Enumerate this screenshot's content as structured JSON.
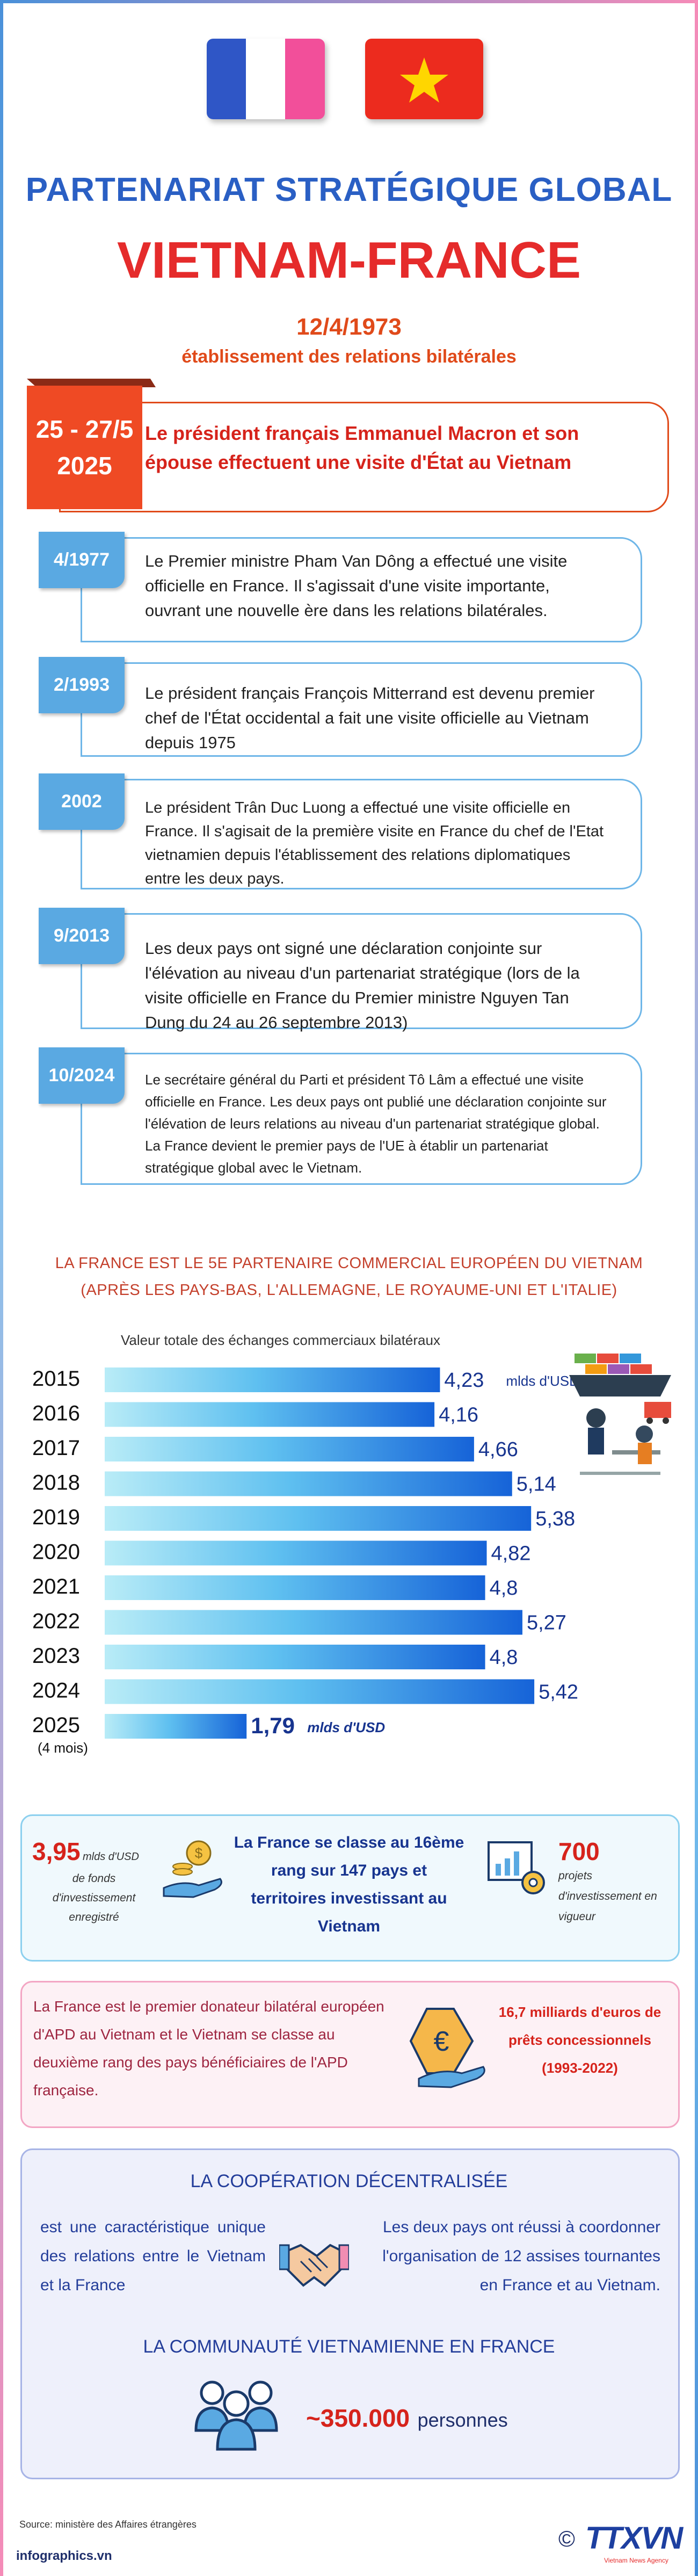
{
  "header": {
    "subtitle": "PARTENARIAT STRATÉGIQUE GLOBAL",
    "title": "VIETNAM-FRANCE",
    "date": "12/4/1973",
    "date_caption": "établissement des relations bilatérales"
  },
  "highlight": {
    "date_line1": "25 - 27/5",
    "date_line2": "2025",
    "text": "Le président français Emmanuel Macron et son épouse effectuent une visite d'État au Vietnam"
  },
  "timeline": [
    {
      "date": "4/1977",
      "text": "Le Premier ministre Pham Van Dông a effectué une visite officielle en France. Il s'agissait d'une visite importante, ouvrant une nouvelle ère dans les relations bilatérales."
    },
    {
      "date": "2/1993",
      "text": "Le président français François Mitterrand est devenu premier chef de l'État occidental a fait une visite officielle au Vietnam depuis 1975"
    },
    {
      "date": "2002",
      "text": "Le président Trân Duc Luong a effectué une visite officielle en France. Il s'agisait de la première visite en France du chef de l'Etat vietnamien depuis l'établissement des relations diplomatiques entre les deux pays."
    },
    {
      "date": "9/2013",
      "text": "Les deux pays ont signé une déclaration conjointe sur l'élévation au niveau d'un partenariat stratégique (lors de la visite officielle en France du Premier ministre Nguyen Tan Dung du 24 au 26 septembre 2013)"
    },
    {
      "date": "10/2024",
      "text": "Le secrétaire général du Parti et président Tô Lâm a effectué une visite officielle en France. Les deux pays ont publié une déclaration conjointe sur l'élévation de leurs relations au niveau d'un partenariat stratégique global. La France devient le premier pays de l'UE à établir un partenariat stratégique global avec le Vietnam."
    }
  ],
  "trade": {
    "caption_line1": "LA FRANCE EST LE 5E PARTENAIRE COMMERCIAL EUROPÉEN DU VIETNAM",
    "caption_line2": "(APRÈS LES PAYS-BAS, L'ALLEMAGNE, LE ROYAUME-UNI ET L'ITALIE)"
  },
  "chart_data": {
    "type": "bar",
    "title": "Valeur totale des échanges commerciaux bilatéraux",
    "categories": [
      "2015",
      "2016",
      "2017",
      "2018",
      "2019",
      "2020",
      "2021",
      "2022",
      "2023",
      "2024",
      "2025"
    ],
    "category_note": "(4 mois)",
    "values": [
      4.23,
      4.16,
      4.66,
      5.14,
      5.38,
      4.82,
      4.8,
      5.27,
      4.8,
      5.42,
      1.79
    ],
    "labels": [
      "4,23",
      "4,16",
      "4,66",
      "5,14",
      "5,38",
      "4,82",
      "4,8",
      "5,27",
      "4,8",
      "5,42",
      "1,79"
    ],
    "unit": "mlds d'USD",
    "orientation": "horizontal"
  },
  "investment": {
    "capital_value": "3,95",
    "capital_unit": "mlds d'USD",
    "capital_caption": "de fonds d'investissement enregistré",
    "rank_text": "La France se classe au 16ème rang sur 147 pays et territoires investissant au Vietnam",
    "projects_value": "700",
    "projects_caption": "projets d'investissement en vigueur"
  },
  "apd": {
    "text": "La France est le premier donateur bilatéral européen d'APD au Vietnam et le Vietnam se classe au deuxième rang des pays bénéficiaires de l'APD française.",
    "loans": "16,7 milliards d'euros de prêts concessionnels (1993-2022)"
  },
  "decentral": {
    "title": "LA COOPÉRATION DÉCENTRALISÉE",
    "left_text": "est une caractéristique unique des relations entre le Vietnam et la France",
    "right_text": "Les deux pays ont réussi à coordonner l'organisation de 12 assises tournantes en France et au Vietnam.",
    "community_title": "LA COMMUNAUTÉ VIETNAMIENNE EN FRANCE",
    "community_value": "~350.000",
    "community_unit": "personnes"
  },
  "footer": {
    "source": "Source: ministère des Affaires étrangères",
    "site": "infographics.vn",
    "copyright": "©",
    "logo": "TTXVN",
    "logo_sub": "Vietnam News Agency"
  },
  "colors": {
    "blue": "#2a5fc4",
    "red": "#e52b2b",
    "orange": "#e04a1a",
    "light_blue": "#5aa9e2",
    "bar": "#1663d8",
    "navy": "#17348f"
  }
}
